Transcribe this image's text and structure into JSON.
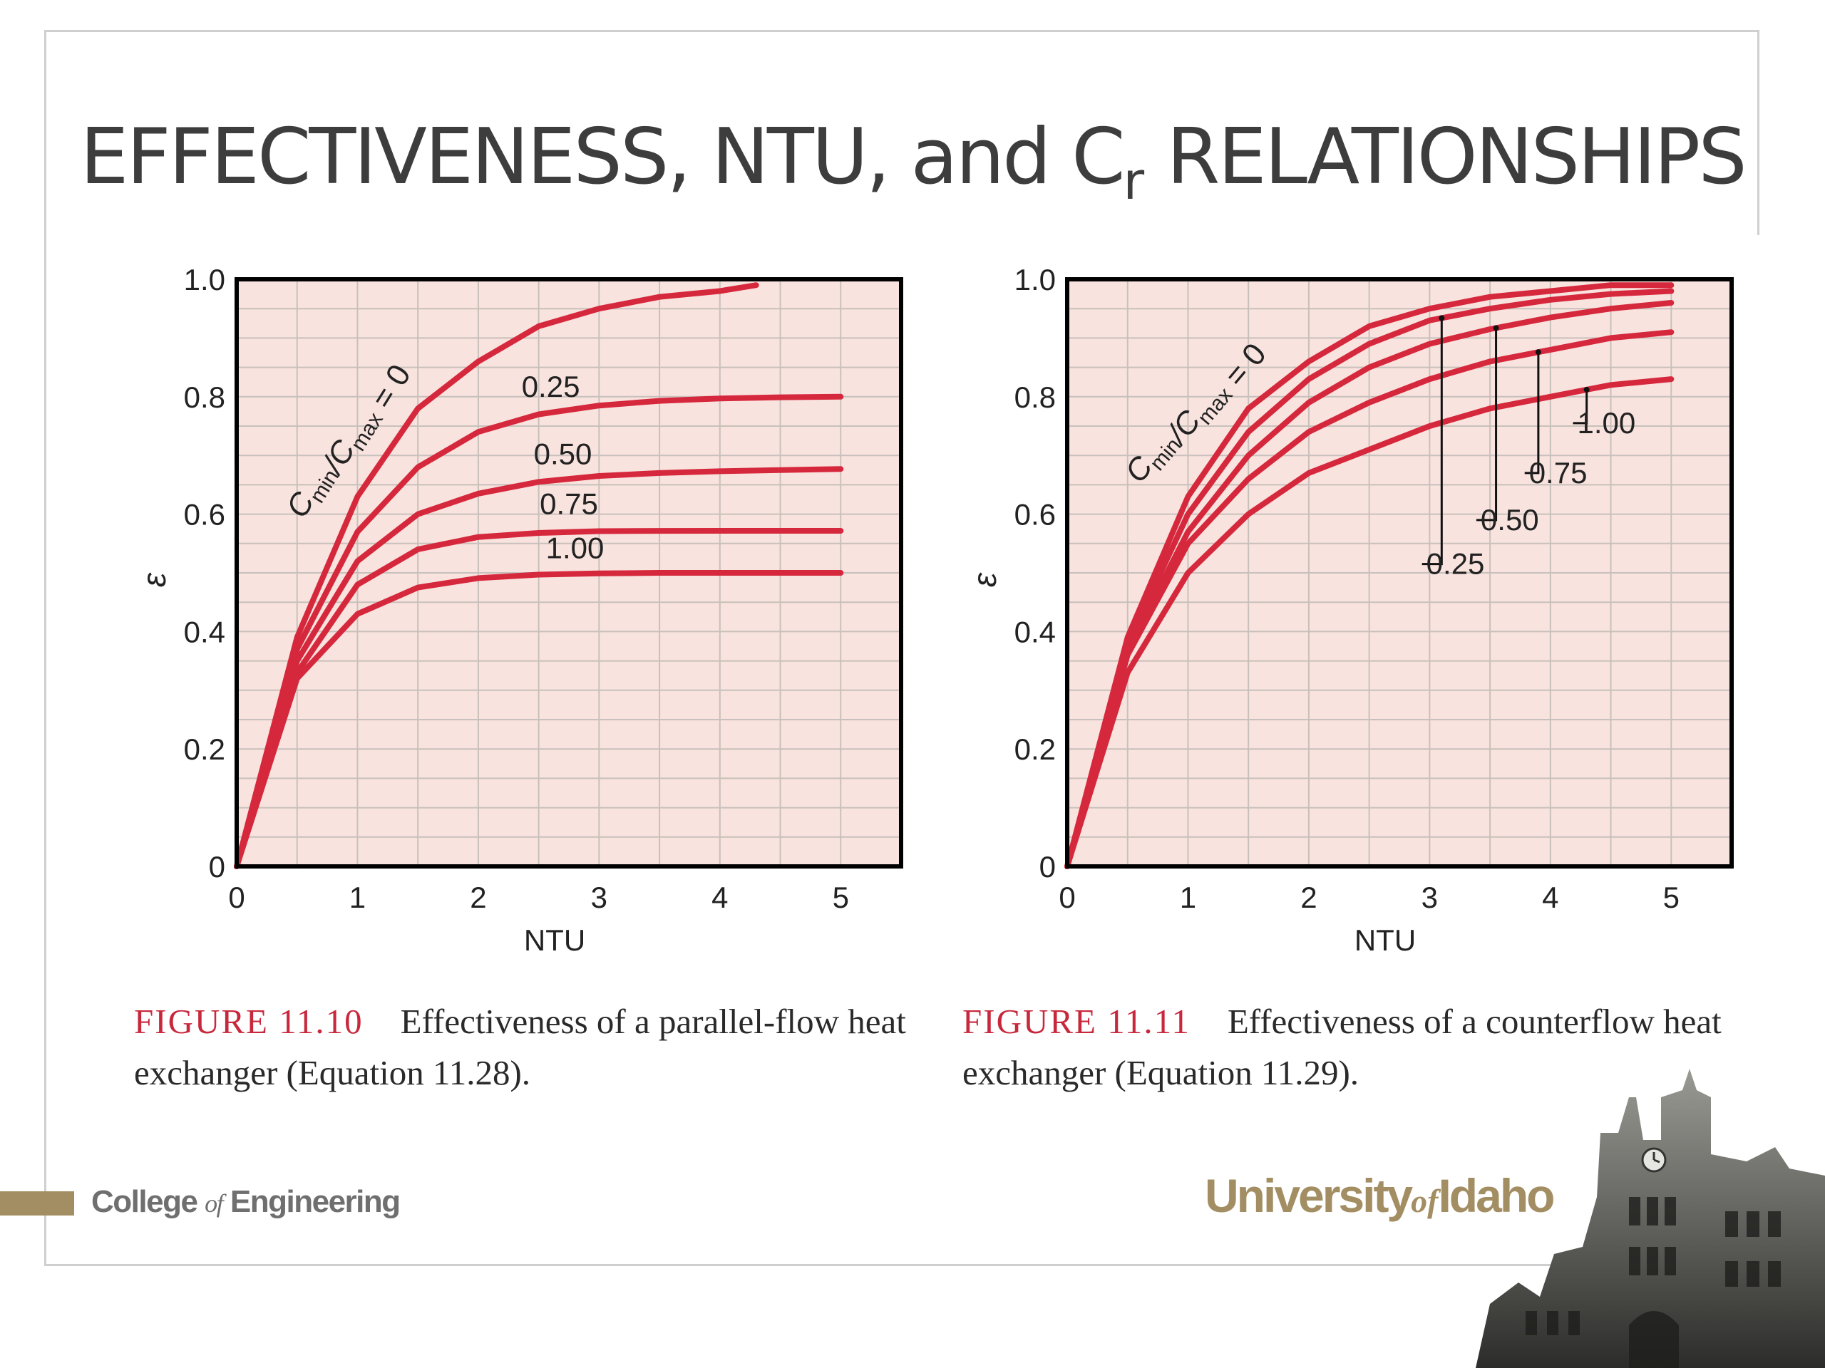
{
  "slide": {
    "title_main": "EFFECTIVENESS, NTU, and C",
    "title_sub": "r",
    "title_rest": " RELATIONSHIPS"
  },
  "chart_data": [
    {
      "type": "line",
      "xlabel": "NTU",
      "ylabel": "ε",
      "xlim": [
        0,
        5.5
      ],
      "ylim": [
        0,
        1.0
      ],
      "xticks": [
        "0",
        "1",
        "2",
        "3",
        "4",
        "5"
      ],
      "yticks": [
        "0",
        "0.2",
        "0.4",
        "0.6",
        "0.8",
        "1.0"
      ],
      "grid": true,
      "legend_label_prefix": "C",
      "legend_label_sub1": "min",
      "legend_label_mid": "/C",
      "legend_label_sub2": "max",
      "legend_label_suffix": " = 0",
      "series": [
        {
          "name": "0",
          "x": [
            0,
            0.5,
            1,
            1.5,
            2,
            2.5,
            3,
            3.5,
            4,
            4.3
          ],
          "y": [
            0,
            0.39,
            0.63,
            0.78,
            0.86,
            0.92,
            0.95,
            0.97,
            0.98,
            0.99
          ]
        },
        {
          "name": "0.25",
          "x": [
            0,
            0.5,
            1,
            1.5,
            2,
            2.5,
            3,
            3.5,
            4,
            4.5,
            5
          ],
          "y": [
            0,
            0.37,
            0.57,
            0.68,
            0.74,
            0.77,
            0.785,
            0.793,
            0.797,
            0.799,
            0.8
          ]
        },
        {
          "name": "0.50",
          "x": [
            0,
            0.5,
            1,
            1.5,
            2,
            2.5,
            3,
            3.5,
            4,
            4.5,
            5
          ],
          "y": [
            0,
            0.35,
            0.52,
            0.6,
            0.635,
            0.655,
            0.665,
            0.67,
            0.673,
            0.675,
            0.677
          ]
        },
        {
          "name": "0.75",
          "x": [
            0,
            0.5,
            1,
            1.5,
            2,
            2.5,
            3,
            3.5,
            4,
            4.5,
            5
          ],
          "y": [
            0,
            0.33,
            0.48,
            0.54,
            0.561,
            0.568,
            0.571,
            0.5715,
            0.5716,
            0.5716,
            0.5716
          ]
        },
        {
          "name": "1.00",
          "x": [
            0,
            0.5,
            1,
            1.5,
            2,
            2.5,
            3,
            3.5,
            4,
            4.5,
            5
          ],
          "y": [
            0,
            0.32,
            0.43,
            0.475,
            0.491,
            0.497,
            0.499,
            0.5,
            0.5,
            0.5,
            0.5
          ]
        }
      ]
    },
    {
      "type": "line",
      "xlabel": "NTU",
      "ylabel": "ε",
      "xlim": [
        0,
        5.5
      ],
      "ylim": [
        0,
        1.0
      ],
      "xticks": [
        "0",
        "1",
        "2",
        "3",
        "4",
        "5"
      ],
      "yticks": [
        "0",
        "0.2",
        "0.4",
        "0.6",
        "0.8",
        "1.0"
      ],
      "grid": true,
      "legend_label_prefix": "C",
      "legend_label_sub1": "min",
      "legend_label_mid": "/C",
      "legend_label_sub2": "max",
      "legend_label_suffix": " = 0",
      "series": [
        {
          "name": "0",
          "x": [
            0,
            0.5,
            1,
            1.5,
            2,
            2.5,
            3,
            3.5,
            4,
            4.5,
            5
          ],
          "y": [
            0,
            0.39,
            0.63,
            0.78,
            0.86,
            0.92,
            0.95,
            0.97,
            0.98,
            0.99,
            0.99
          ]
        },
        {
          "name": "0.25",
          "x": [
            0,
            0.5,
            1,
            1.5,
            2,
            2.5,
            3,
            3.5,
            4,
            4.5,
            5
          ],
          "y": [
            0,
            0.38,
            0.6,
            0.74,
            0.83,
            0.89,
            0.93,
            0.95,
            0.965,
            0.975,
            0.98
          ]
        },
        {
          "name": "0.50",
          "x": [
            0,
            0.5,
            1,
            1.5,
            2,
            2.5,
            3,
            3.5,
            4,
            4.5,
            5
          ],
          "y": [
            0,
            0.37,
            0.57,
            0.7,
            0.79,
            0.85,
            0.89,
            0.915,
            0.935,
            0.95,
            0.96
          ]
        },
        {
          "name": "0.75",
          "x": [
            0,
            0.5,
            1,
            1.5,
            2,
            2.5,
            3,
            3.5,
            4,
            4.5,
            5
          ],
          "y": [
            0,
            0.36,
            0.55,
            0.66,
            0.74,
            0.79,
            0.83,
            0.86,
            0.88,
            0.9,
            0.91
          ]
        },
        {
          "name": "1.00",
          "x": [
            0,
            0.5,
            1,
            1.5,
            2,
            2.5,
            3,
            3.5,
            4,
            4.5,
            5
          ],
          "y": [
            0,
            0.33,
            0.5,
            0.6,
            0.67,
            0.71,
            0.75,
            0.78,
            0.8,
            0.82,
            0.83
          ]
        }
      ]
    }
  ],
  "captions": {
    "left_label": "FIGURE 11.10",
    "left_text": "Effectiveness of a parallel-flow heat exchanger (Equation 11.28).",
    "right_label": "FIGURE 11.11",
    "right_text": "Effectiveness of a counterflow heat exchanger (Equation 11.29)."
  },
  "footer": {
    "college_pre": "College ",
    "college_of": "of",
    "college_post": " Engineering",
    "university_pre": "University",
    "university_of": "of",
    "university_post": "Idaho"
  },
  "colors": {
    "curve": "#d6283c",
    "plot_bg": "#f9e3de",
    "grid": "#c8c0bc",
    "accent_gold": "#a38e63"
  }
}
